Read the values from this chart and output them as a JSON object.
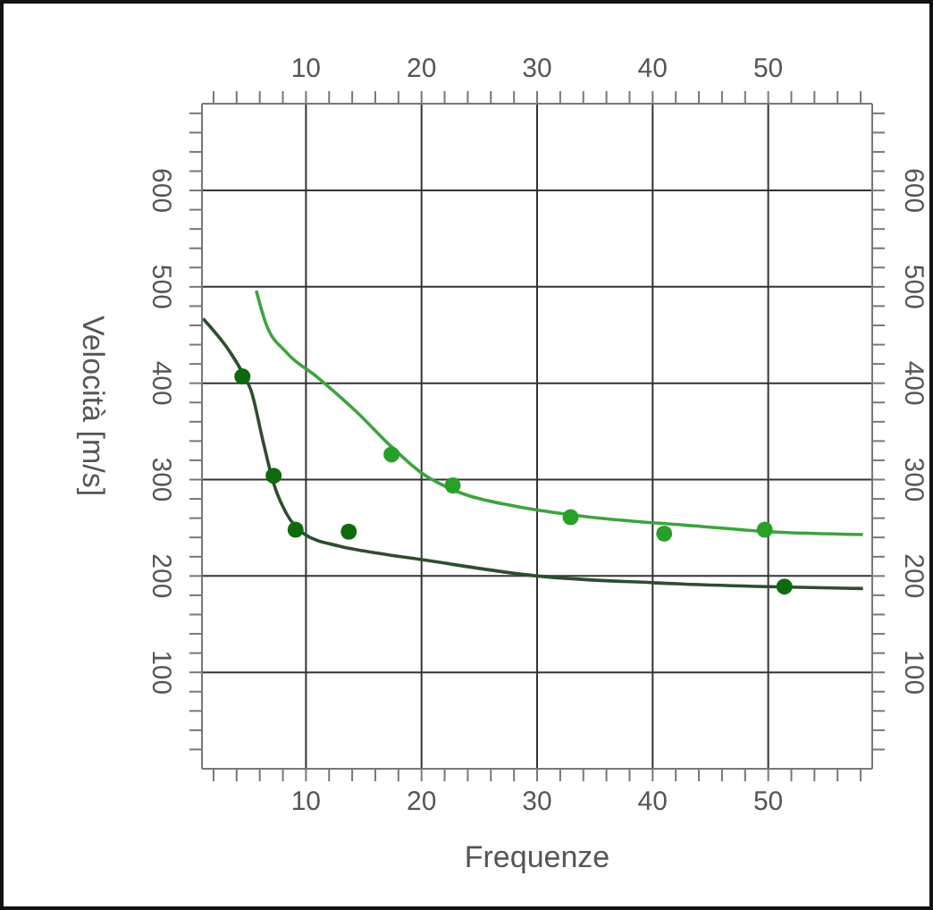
{
  "chart_data": {
    "type": "scatter",
    "xlabel": "Frequenze",
    "ylabel": "Velocità [m/s]",
    "grid": true,
    "xlim": [
      1,
      59
    ],
    "xticks": [
      {
        "value": 2,
        "label": null
      },
      {
        "value": 4,
        "label": null
      },
      {
        "value": 6,
        "label": null
      },
      {
        "value": 8,
        "label": null
      },
      10,
      {
        "value": 12,
        "label": null
      },
      {
        "value": 14,
        "label": null
      },
      {
        "value": 16,
        "label": null
      },
      {
        "value": 18,
        "label": null
      },
      20,
      {
        "value": 22,
        "label": null
      },
      {
        "value": 24,
        "label": null
      },
      {
        "value": 26,
        "label": null
      },
      {
        "value": 28,
        "label": null
      },
      30,
      {
        "value": 32,
        "label": null
      },
      {
        "value": 34,
        "label": null
      },
      {
        "value": 36,
        "label": null
      },
      {
        "value": 38,
        "label": null
      },
      40,
      {
        "value": 42,
        "label": null
      },
      {
        "value": 44,
        "label": null
      },
      {
        "value": 46,
        "label": null
      },
      {
        "value": 48,
        "label": null
      },
      50,
      {
        "value": 52,
        "label": null
      },
      {
        "value": 54,
        "label": null
      },
      {
        "value": 56,
        "label": null
      },
      {
        "value": 58,
        "label": null
      }
    ],
    "x2lim": [
      1,
      59
    ],
    "x2ticks": [
      {
        "value": 2,
        "label": null
      },
      {
        "value": 4,
        "label": null
      },
      {
        "value": 6,
        "label": null
      },
      {
        "value": 8,
        "label": null
      },
      10,
      {
        "value": 12,
        "label": null
      },
      {
        "value": 14,
        "label": null
      },
      {
        "value": 16,
        "label": null
      },
      {
        "value": 18,
        "label": null
      },
      20,
      {
        "value": 22,
        "label": null
      },
      {
        "value": 24,
        "label": null
      },
      {
        "value": 26,
        "label": null
      },
      {
        "value": 28,
        "label": null
      },
      30,
      {
        "value": 32,
        "label": null
      },
      {
        "value": 34,
        "label": null
      },
      {
        "value": 36,
        "label": null
      },
      {
        "value": 38,
        "label": null
      },
      40,
      {
        "value": 42,
        "label": null
      },
      {
        "value": 44,
        "label": null
      },
      {
        "value": 46,
        "label": null
      },
      {
        "value": 48,
        "label": null
      },
      50,
      {
        "value": 52,
        "label": null
      },
      {
        "value": 54,
        "label": null
      },
      {
        "value": 56,
        "label": null
      },
      {
        "value": 58,
        "label": null
      }
    ],
    "ylim": [
      0,
      690
    ],
    "yticks": [
      {
        "value": 20,
        "label": null
      },
      {
        "value": 40,
        "label": null
      },
      {
        "value": 60,
        "label": null
      },
      {
        "value": 80,
        "label": null
      },
      100,
      {
        "value": 120,
        "label": null
      },
      {
        "value": 140,
        "label": null
      },
      {
        "value": 160,
        "label": null
      },
      {
        "value": 180,
        "label": null
      },
      200,
      {
        "value": 220,
        "label": null
      },
      {
        "value": 240,
        "label": null
      },
      {
        "value": 260,
        "label": null
      },
      {
        "value": 280,
        "label": null
      },
      300,
      {
        "value": 320,
        "label": null
      },
      {
        "value": 340,
        "label": null
      },
      {
        "value": 360,
        "label": null
      },
      {
        "value": 380,
        "label": null
      },
      400,
      {
        "value": 420,
        "label": null
      },
      {
        "value": 440,
        "label": null
      },
      {
        "value": 460,
        "label": null
      },
      {
        "value": 480,
        "label": null
      },
      500,
      {
        "value": 520,
        "label": null
      },
      {
        "value": 540,
        "label": null
      },
      {
        "value": 560,
        "label": null
      },
      {
        "value": 580,
        "label": null
      },
      600,
      {
        "value": 620,
        "label": null
      },
      {
        "value": 640,
        "label": null
      },
      {
        "value": 660,
        "label": null
      },
      {
        "value": 680,
        "label": null
      }
    ],
    "y2lim": [
      0,
      690
    ],
    "y2ticks": [
      {
        "value": 20,
        "label": null
      },
      {
        "value": 40,
        "label": null
      },
      {
        "value": 60,
        "label": null
      },
      {
        "value": 80,
        "label": null
      },
      100,
      {
        "value": 120,
        "label": null
      },
      {
        "value": 140,
        "label": null
      },
      {
        "value": 160,
        "label": null
      },
      {
        "value": 180,
        "label": null
      },
      200,
      {
        "value": 220,
        "label": null
      },
      {
        "value": 240,
        "label": null
      },
      {
        "value": 260,
        "label": null
      },
      {
        "value": 280,
        "label": null
      },
      300,
      {
        "value": 320,
        "label": null
      },
      {
        "value": 340,
        "label": null
      },
      {
        "value": 360,
        "label": null
      },
      {
        "value": 380,
        "label": null
      },
      400,
      {
        "value": 420,
        "label": null
      },
      {
        "value": 440,
        "label": null
      },
      {
        "value": 460,
        "label": null
      },
      {
        "value": 480,
        "label": null
      },
      500,
      {
        "value": 520,
        "label": null
      },
      {
        "value": 540,
        "label": null
      },
      {
        "value": 560,
        "label": null
      },
      {
        "value": 580,
        "label": null
      },
      600,
      {
        "value": 620,
        "label": null
      },
      {
        "value": 640,
        "label": null
      },
      {
        "value": 660,
        "label": null
      },
      {
        "value": 680,
        "label": null
      }
    ],
    "series": [
      {
        "marker": "circle",
        "color": "#0d6b0d",
        "x": [
          4.5,
          7.2,
          9.1,
          13.7,
          51.4
        ],
        "values": [
          407,
          304,
          248,
          246,
          189
        ]
      },
      {
        "type": "line",
        "marker": "none",
        "line_style": "solid",
        "color": "#2e4d2e",
        "x": [
          1.1,
          4.8,
          5.2,
          6.3,
          7.2,
          8.3,
          9.8,
          12.9,
          15,
          20,
          30,
          40,
          50,
          58.2
        ],
        "values": [
          467,
          404,
          394,
          339,
          296,
          265,
          244,
          231,
          226,
          217,
          200,
          193,
          189,
          187
        ]
      },
      {
        "marker": "circle",
        "color": "#27a027",
        "x": [
          17.4,
          22.7,
          32.9,
          41.0,
          49.7
        ],
        "values": [
          326,
          294,
          261,
          244,
          248
        ]
      },
      {
        "type": "line",
        "marker": "none",
        "line_style": "solid",
        "color": "#3da33d",
        "x": [
          5.7,
          6.5,
          8.3,
          10.9,
          14.4,
          17.5,
          20.1,
          23.2,
          28.3,
          33.3,
          43.6,
          50,
          58.2
        ],
        "values": [
          496,
          463,
          432,
          407,
          370,
          333,
          306,
          287,
          272,
          263,
          252,
          246,
          243
        ]
      }
    ]
  }
}
